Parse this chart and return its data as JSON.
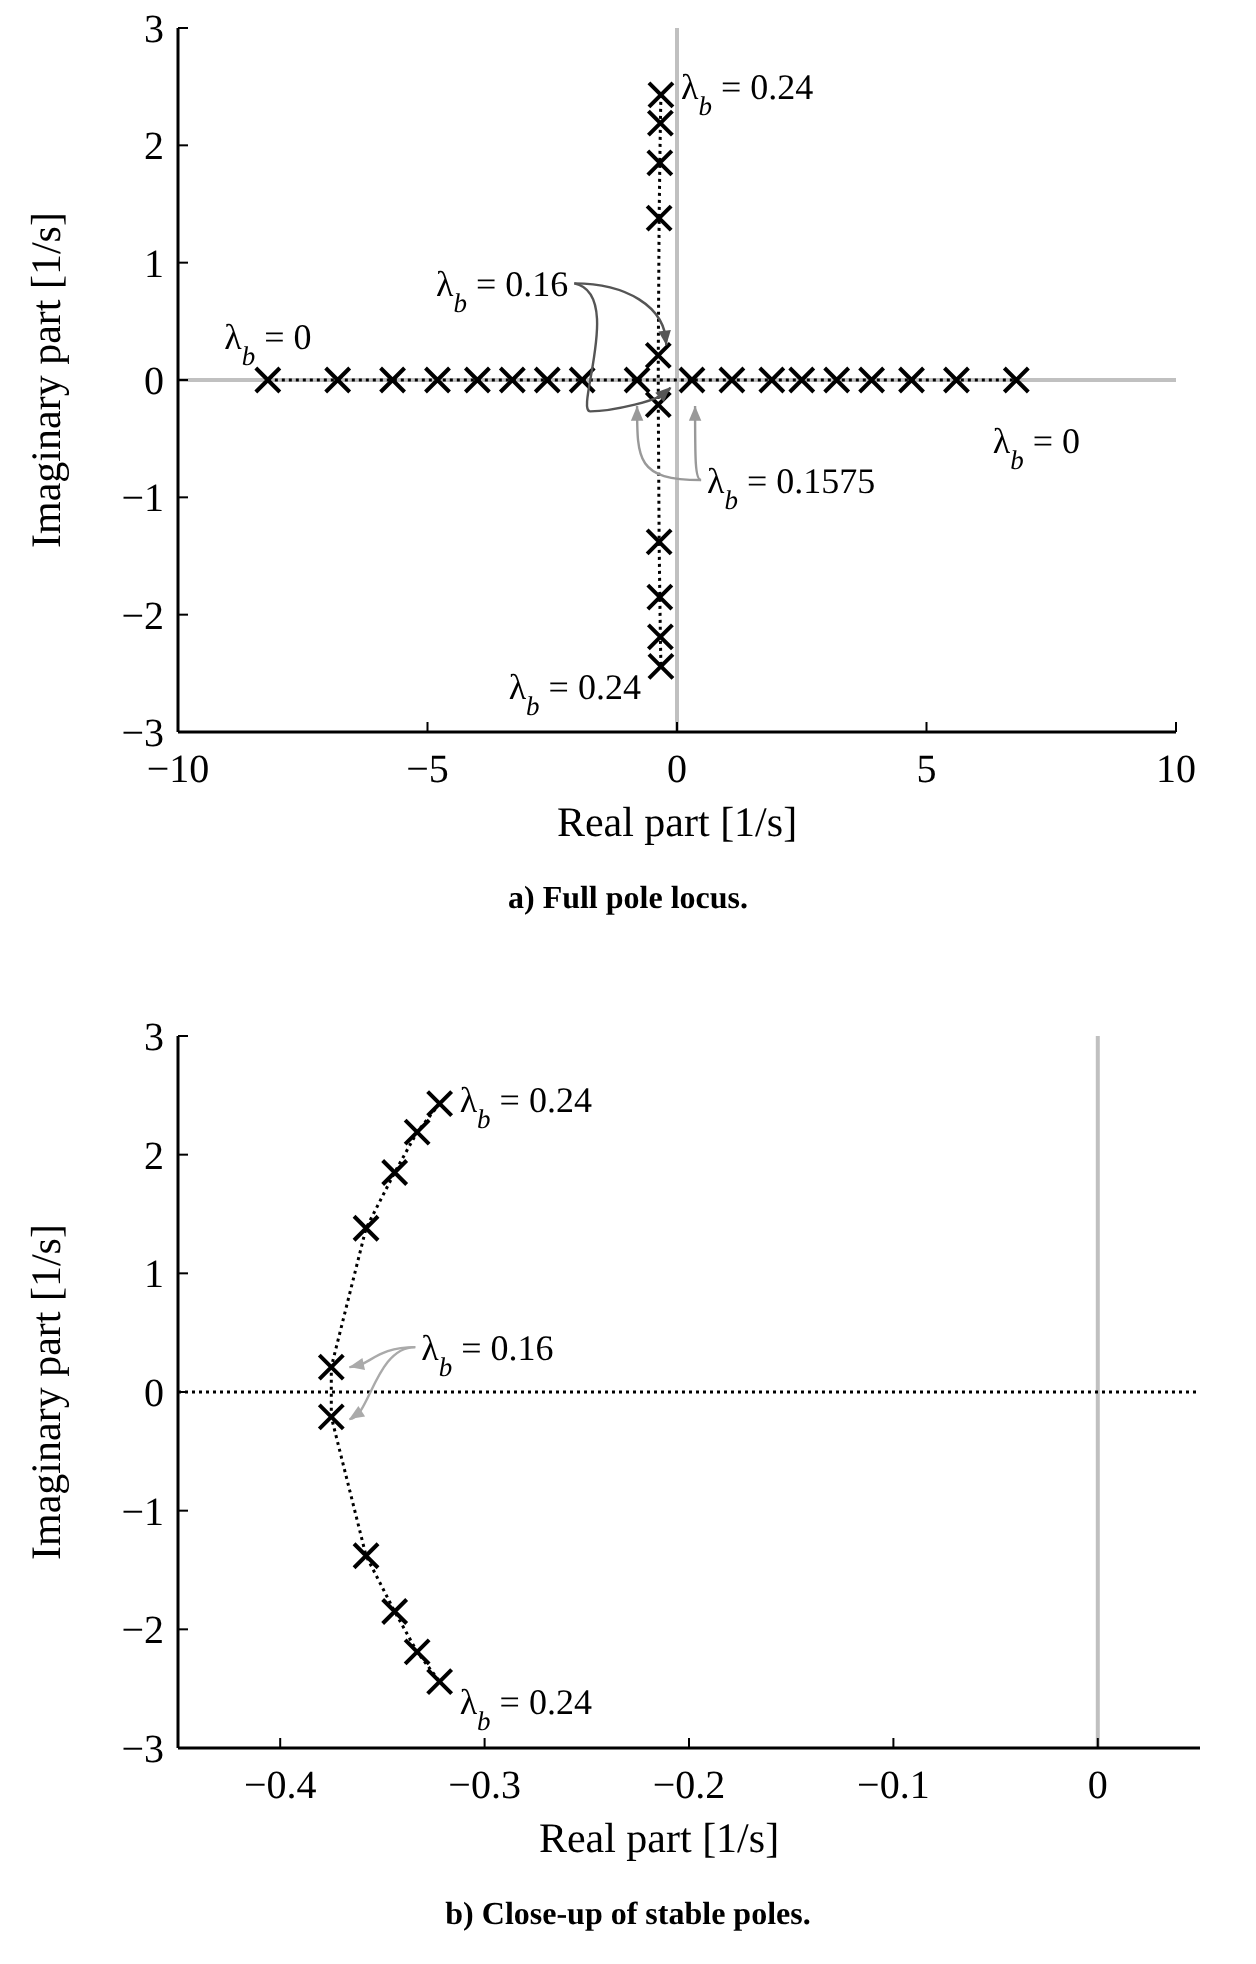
{
  "chart_data": [
    {
      "type": "line",
      "title": "a)  Full pole locus.",
      "xlabel": "Real part [1/s]",
      "ylabel": "Imaginary part [1/s]",
      "xlim": [
        -10,
        10
      ],
      "xticks": [
        {
          "value": -10,
          "label": "−10"
        },
        {
          "value": -5,
          "label": "−5"
        },
        0,
        5,
        10
      ],
      "ylim": [
        -3,
        3
      ],
      "yticks": [
        {
          "value": -3,
          "label": "−3"
        },
        {
          "value": -2,
          "label": "−2"
        },
        {
          "value": -1,
          "label": "−1"
        },
        0,
        1,
        2,
        3
      ],
      "marker": "cross",
      "line_style": "dotted",
      "series": [
        {
          "color": "#000000",
          "x": [
            -8.2,
            -6.8,
            -5.7,
            -4.8,
            -4.0,
            -3.3,
            -2.6,
            -1.9,
            -0.8,
            0.3,
            1.1,
            1.9,
            2.5,
            3.2,
            3.9,
            4.7,
            5.6,
            6.8
          ],
          "values": [
            0,
            0,
            0,
            0,
            0,
            0,
            0,
            0,
            0,
            0,
            0,
            0,
            0,
            0,
            0,
            0,
            0,
            0
          ]
        },
        {
          "color": "#000000",
          "x": [
            -0.322,
            -0.333,
            -0.344,
            -0.358,
            -0.375,
            -0.375,
            -0.358,
            -0.344,
            -0.333,
            -0.322
          ],
          "values": [
            2.43,
            2.19,
            1.85,
            1.38,
            0.21,
            -0.21,
            -1.38,
            -1.85,
            -2.19,
            -2.44
          ]
        }
      ],
      "ref_lines": [
        {
          "axis": "x",
          "value": 0,
          "color": "#c0c0c0",
          "line_style": "solid"
        },
        {
          "axis": "y",
          "value": 0,
          "color": "#c0c0c0",
          "line_style": "solid"
        }
      ],
      "annotations": [
        {
          "text": "λ$_{b}$ = 0",
          "x": -8.2,
          "y": 0
        },
        {
          "text": "λ$_{b}$ = 0.24",
          "x": -0.322,
          "y": 2.43
        },
        {
          "text": "λ$_{b}$ = 0.16",
          "x": -0.375,
          "y": 0.21
        },
        {
          "text": "λ$_{b}$ = 0.1575",
          "x": -0.8,
          "y": 0
        },
        {
          "text": "λ$_{b}$ = 0",
          "x": 6.8,
          "y": 0
        },
        {
          "text": "λ$_{b}$ = 0.24",
          "x": -0.322,
          "y": -2.44
        }
      ]
    },
    {
      "type": "line",
      "title": "b)  Close-up of stable poles.",
      "xlabel": "Real part [1/s]",
      "ylabel": "Imaginary part [1/s]",
      "xlim": [
        -0.45,
        0.05
      ],
      "xticks": [
        {
          "value": -0.4,
          "label": "−0.4"
        },
        {
          "value": -0.3,
          "label": "−0.3"
        },
        {
          "value": -0.2,
          "label": "−0.2"
        },
        {
          "value": -0.1,
          "label": "−0.1"
        },
        0
      ],
      "ylim": [
        -3,
        3
      ],
      "yticks": [
        {
          "value": -3,
          "label": "−3"
        },
        {
          "value": -2,
          "label": "−2"
        },
        {
          "value": -1,
          "label": "−1"
        },
        0,
        1,
        2,
        3
      ],
      "marker": "cross",
      "line_style": "dotted",
      "series": [
        {
          "color": "#000000",
          "x": [
            -0.322,
            -0.333,
            -0.344,
            -0.358,
            -0.375,
            -0.375,
            -0.358,
            -0.344,
            -0.333,
            -0.322
          ],
          "values": [
            2.43,
            2.19,
            1.85,
            1.38,
            0.21,
            -0.21,
            -1.38,
            -1.85,
            -2.19,
            -2.44
          ]
        }
      ],
      "ref_lines": [
        {
          "axis": "x",
          "value": 0,
          "color": "#c0c0c0",
          "line_style": "solid"
        },
        {
          "axis": "y",
          "value": 0,
          "color": "#000000",
          "line_style": "dotted"
        }
      ],
      "annotations": [
        {
          "text": "λ$_{b}$ = 0.24",
          "x": -0.322,
          "y": 2.43
        },
        {
          "text": "λ$_{b}$ = 0.16",
          "x": -0.375,
          "y": 0.21
        },
        {
          "text": "λ$_{b}$ = 0.24",
          "x": -0.322,
          "y": -2.44
        }
      ]
    }
  ]
}
